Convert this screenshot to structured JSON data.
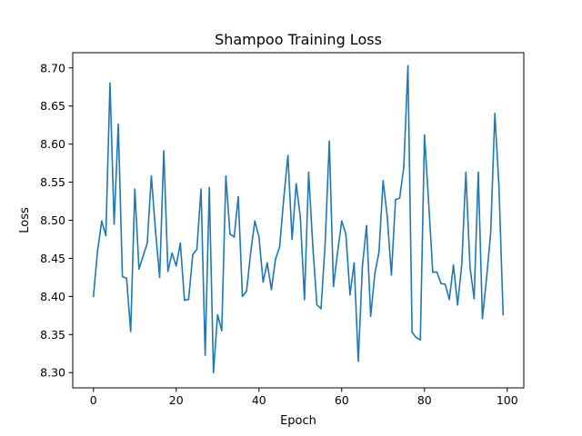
{
  "chart_data": {
    "type": "line",
    "title": "Shampoo Training Loss",
    "xlabel": "Epoch",
    "ylabel": "Loss",
    "xlim": [
      -5,
      104
    ],
    "ylim": [
      8.28,
      8.72
    ],
    "xticks": [
      0,
      20,
      40,
      60,
      80,
      100
    ],
    "xtick_labels": [
      "0",
      "20",
      "40",
      "60",
      "80",
      "100"
    ],
    "yticks": [
      8.3,
      8.35,
      8.4,
      8.45,
      8.5,
      8.55,
      8.6,
      8.65,
      8.7
    ],
    "ytick_labels": [
      "8.30",
      "8.35",
      "8.40",
      "8.45",
      "8.50",
      "8.55",
      "8.60",
      "8.65",
      "8.70"
    ],
    "grid": false,
    "line_color": "#1f77b4",
    "series": [
      {
        "x": [
          0,
          1,
          2,
          3,
          4,
          5,
          6,
          7,
          8,
          9,
          10,
          11,
          12,
          13,
          14,
          15,
          16,
          17,
          18,
          19,
          20,
          21,
          22,
          23,
          24,
          25,
          26,
          27,
          28,
          29,
          30,
          31,
          32,
          33,
          34,
          35,
          36,
          37,
          38,
          39,
          40,
          41,
          42,
          43,
          44,
          45,
          46,
          47,
          48,
          49,
          50,
          51,
          52,
          53,
          54,
          55,
          56,
          57,
          58,
          59,
          60,
          61,
          62,
          63,
          64,
          65,
          66,
          67,
          68,
          69,
          70,
          71,
          72,
          73,
          74,
          75,
          76,
          77,
          78,
          79,
          80,
          81,
          82,
          83,
          84,
          85,
          86,
          87,
          88,
          89,
          90,
          91,
          92,
          93,
          94,
          95,
          96,
          97,
          98,
          99
        ],
        "values": [
          8.4,
          8.46,
          8.499,
          8.48,
          8.68,
          8.495,
          8.626,
          8.426,
          8.424,
          8.354,
          8.541,
          8.436,
          8.453,
          8.47,
          8.558,
          8.486,
          8.425,
          8.591,
          8.433,
          8.457,
          8.44,
          8.47,
          8.395,
          8.396,
          8.455,
          8.462,
          8.541,
          8.323,
          8.543,
          8.3,
          8.376,
          8.355,
          8.558,
          8.482,
          8.478,
          8.531,
          8.4,
          8.407,
          8.458,
          8.499,
          8.478,
          8.419,
          8.444,
          8.409,
          8.449,
          8.465,
          8.529,
          8.585,
          8.475,
          8.548,
          8.504,
          8.396,
          8.563,
          8.467,
          8.389,
          8.384,
          8.47,
          8.604,
          8.413,
          8.458,
          8.499,
          8.482,
          8.402,
          8.444,
          8.315,
          8.44,
          8.493,
          8.374,
          8.43,
          8.458,
          8.552,
          8.505,
          8.428,
          8.527,
          8.529,
          8.57,
          8.703,
          8.353,
          8.346,
          8.343,
          8.612,
          8.524,
          8.432,
          8.432,
          8.417,
          8.416,
          8.396,
          8.441,
          8.389,
          8.441,
          8.563,
          8.438,
          8.397,
          8.563,
          8.371,
          8.424,
          8.484,
          8.64,
          8.544,
          8.376
        ]
      }
    ]
  }
}
